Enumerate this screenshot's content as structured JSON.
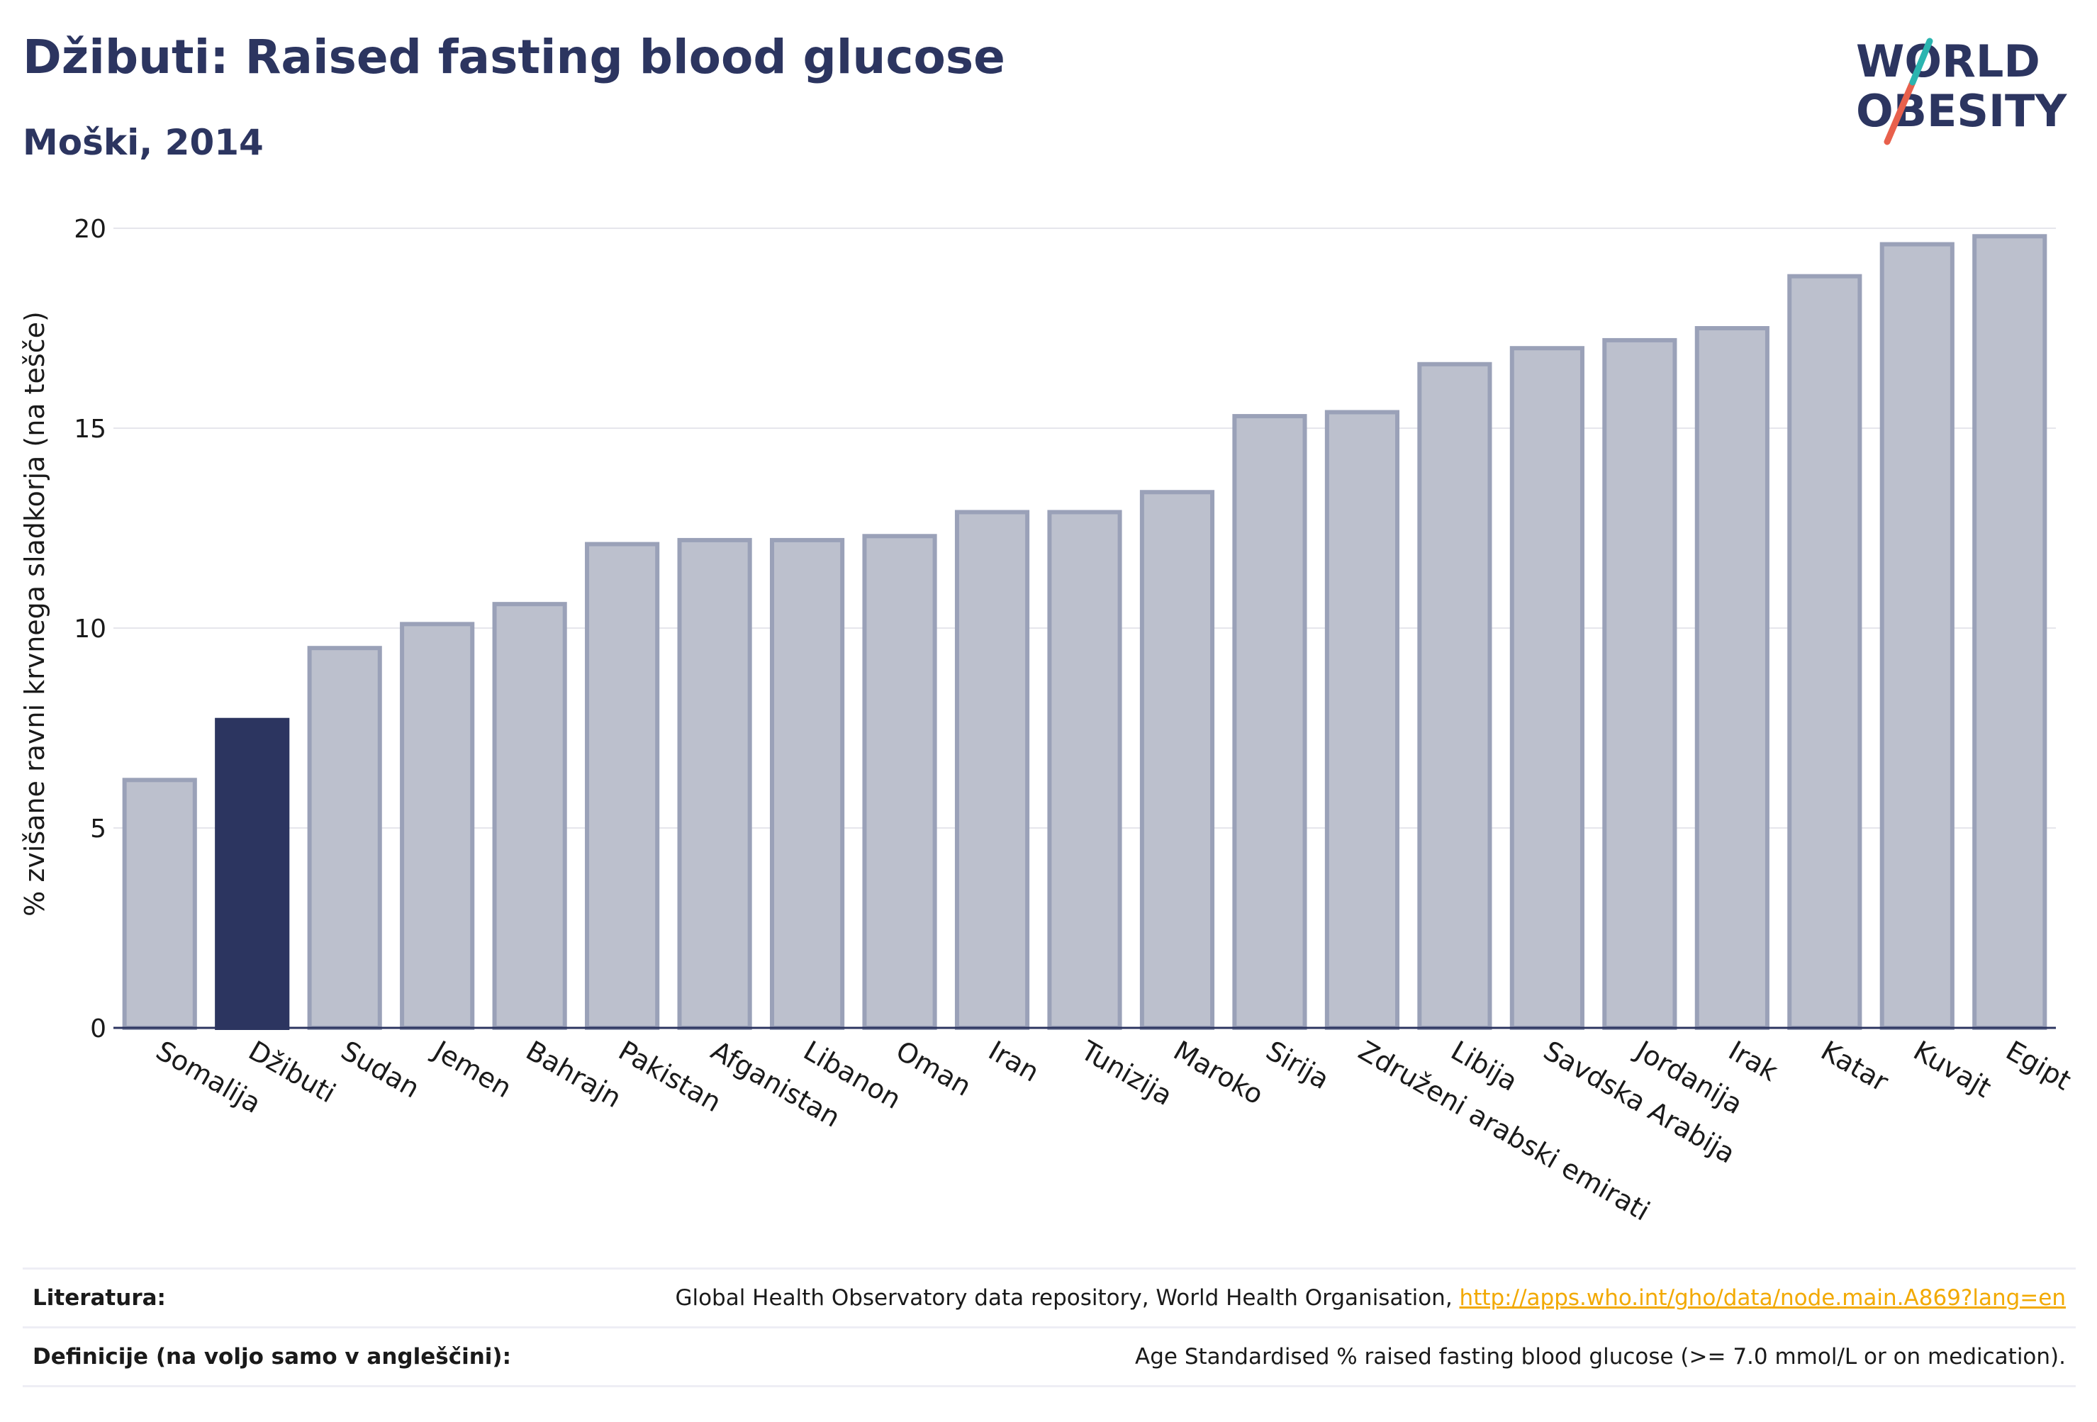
{
  "header": {
    "title": "Džibuti: Raised fasting blood glucose",
    "subtitle": "Moški, 2014"
  },
  "logo": {
    "line1": "WORLD",
    "line2": "OBESITY"
  },
  "colors": {
    "highlight": "#2c3560",
    "bar_fill": "#bcc0cd",
    "bar_stroke": "#9aa1b8",
    "grid": "#e6e6ec",
    "logo_red": "#e8604c",
    "logo_teal": "#2bb5b0",
    "link": "#f2a900"
  },
  "chart_data": {
    "type": "bar",
    "title": "Džibuti: Raised fasting blood glucose",
    "subtitle": "Moški, 2014",
    "xlabel": "",
    "ylabel": "% zvišane ravni krvnega sladkorja (na tešče)",
    "ylim": [
      0,
      20
    ],
    "yticks": [
      0,
      5,
      10,
      15,
      20
    ],
    "grid": true,
    "highlight": "Džibuti",
    "categories": [
      "Somalija",
      "Džibuti",
      "Sudan",
      "Jemen",
      "Bahrajn",
      "Pakistan",
      "Afganistan",
      "Libanon",
      "Oman",
      "Iran",
      "Tunizija",
      "Maroko",
      "Sirija",
      "Združeni arabski emirati",
      "Libija",
      "Savdska Arabija",
      "Jordanija",
      "Irak",
      "Katar",
      "Kuvajt",
      "Egipt"
    ],
    "values": [
      6.2,
      7.7,
      9.5,
      10.1,
      10.6,
      12.1,
      12.2,
      12.2,
      12.3,
      12.9,
      12.9,
      13.4,
      15.3,
      15.4,
      16.6,
      17.0,
      17.2,
      17.5,
      18.8,
      19.6,
      19.8
    ]
  },
  "footer": {
    "references_label": "Literatura:",
    "references_text": "Global Health Observatory data repository, World Health Organisation, ",
    "references_link": "http://apps.who.int/gho/data/node.main.A869?lang=en",
    "definitions_label": "Definicije (na voljo samo v angleščini):",
    "definitions_text": "Age Standardised % raised fasting blood glucose (>= 7.0 mmol/L or on medication)."
  }
}
